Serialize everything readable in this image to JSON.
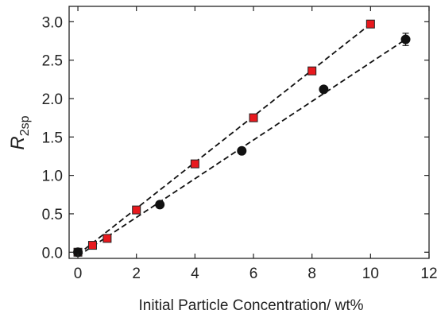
{
  "chart_data": {
    "type": "scatter",
    "title": "",
    "xlabel": "Initial Particle Concentration/ wt%",
    "ylabel_main": "R",
    "ylabel_sub": "2sp",
    "xlim": [
      -0.3,
      12
    ],
    "ylim": [
      -0.08,
      3.2
    ],
    "xticks": [
      0,
      2,
      4,
      6,
      8,
      10,
      12
    ],
    "yticks": [
      0.0,
      0.5,
      1.0,
      1.5,
      2.0,
      2.5,
      3.0
    ],
    "xtick_labels": [
      "0",
      "2",
      "4",
      "6",
      "8",
      "10",
      "12"
    ],
    "ytick_labels": [
      "0.0",
      "0.5",
      "1.0",
      "1.5",
      "2.0",
      "2.5",
      "3.0"
    ],
    "grid": false,
    "legend": "none",
    "series": [
      {
        "marker": "square",
        "color": "#e8191e",
        "edge_color": "#222222",
        "x": [
          0,
          0.5,
          1,
          2,
          4,
          6,
          8,
          10
        ],
        "y": [
          0.0,
          0.09,
          0.18,
          0.55,
          1.15,
          1.75,
          2.36,
          2.97
        ],
        "fit": {
          "x": [
            0,
            10
          ],
          "y": [
            -0.03,
            2.97
          ]
        }
      },
      {
        "marker": "circle",
        "color": "#111111",
        "edge_color": "#111111",
        "x": [
          0,
          2.8,
          5.6,
          8.4,
          11.2
        ],
        "y": [
          0.0,
          0.62,
          1.32,
          2.12,
          2.77
        ],
        "yerr": [
          0,
          0,
          0,
          0,
          0.08
        ],
        "fit": {
          "x": [
            0,
            11.2
          ],
          "y": [
            -0.05,
            2.77
          ]
        }
      }
    ]
  }
}
